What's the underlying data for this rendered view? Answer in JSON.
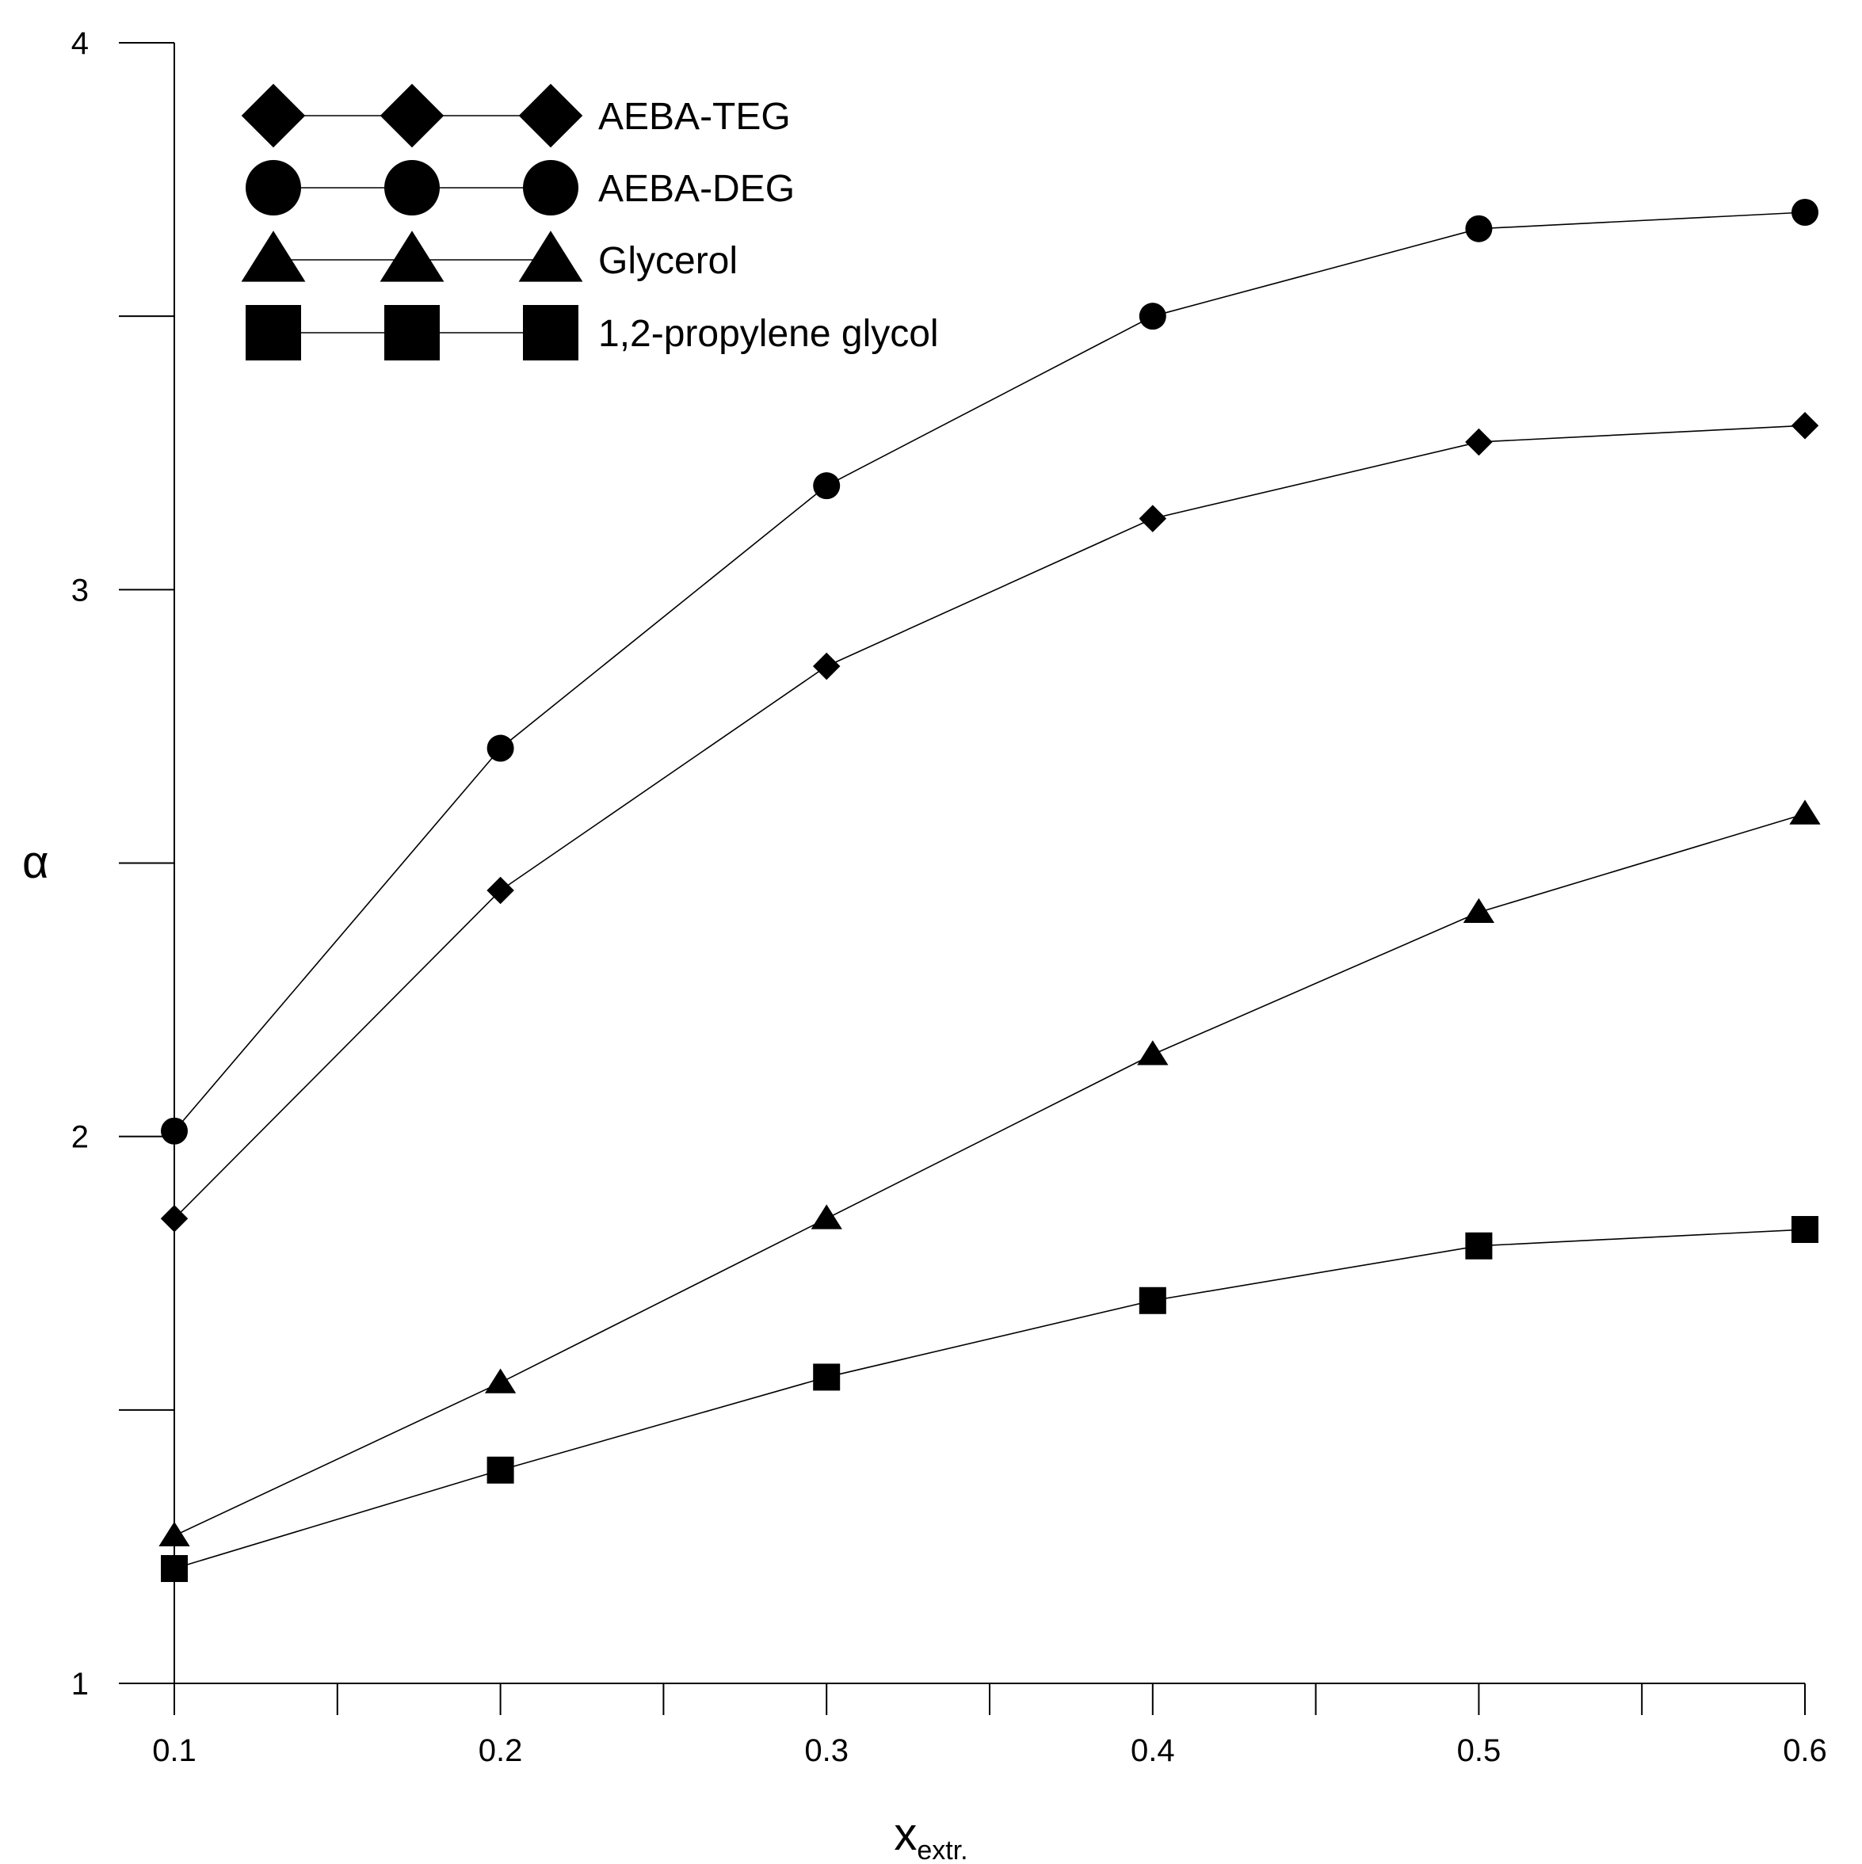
{
  "chart_data": {
    "type": "line",
    "xlabel": "x",
    "xlabel_sub": "extr.",
    "ylabel": "α",
    "xlim": [
      0.1,
      0.6
    ],
    "ylim": [
      1,
      4
    ],
    "x_ticks": [
      "0.1",
      "0.2",
      "0.3",
      "0.4",
      "0.5",
      "0.6"
    ],
    "y_ticks": [
      "1",
      "2",
      "3",
      "4"
    ],
    "x": [
      0.1,
      0.2,
      0.3,
      0.4,
      0.5,
      0.6
    ],
    "grid": false,
    "legend_position": "top-left",
    "series": [
      {
        "name": "AEBA-TEG",
        "marker": "diamond",
        "values": [
          1.85,
          2.45,
          2.86,
          3.13,
          3.27,
          3.3
        ]
      },
      {
        "name": "AEBA-DEG",
        "marker": "circle",
        "values": [
          2.01,
          2.71,
          3.19,
          3.5,
          3.66,
          3.69
        ]
      },
      {
        "name": "Glycerol",
        "marker": "triangle",
        "values": [
          1.27,
          1.55,
          1.85,
          2.15,
          2.41,
          2.59
        ]
      },
      {
        "name": "1,2-propylene glycol",
        "marker": "square",
        "values": [
          1.21,
          1.39,
          1.56,
          1.7,
          1.8,
          1.83
        ]
      }
    ],
    "colors": {
      "line": "#000000",
      "marker": "#000000",
      "axis": "#000000"
    }
  }
}
